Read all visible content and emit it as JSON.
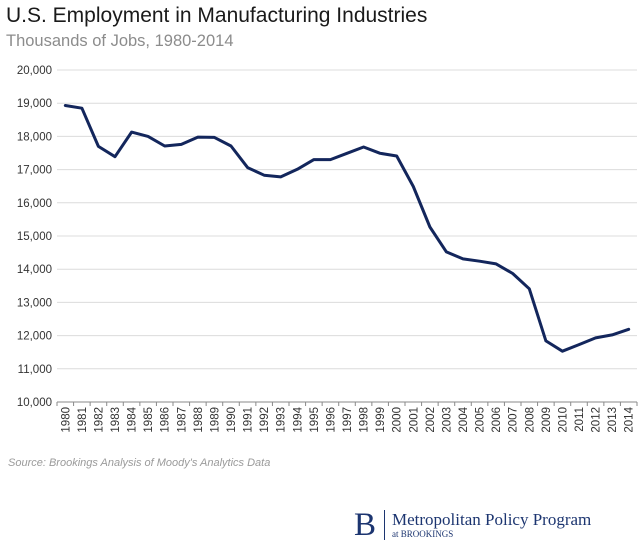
{
  "header": {
    "title": "U.S. Employment in Manufacturing Industries",
    "subtitle": "Thousands of Jobs, 1980-2014"
  },
  "footer": {
    "source": "Source: Brookings Analysis of Moody's Analytics Data"
  },
  "brand": {
    "logo_letter": "B",
    "name": "Metropolitan Policy Program",
    "sub": "at BROOKINGS",
    "color": "#1c3570"
  },
  "chart_data": {
    "type": "line",
    "title": "U.S. Employment in Manufacturing Industries",
    "subtitle": "Thousands of Jobs, 1980-2014",
    "xlabel": "",
    "ylabel": "",
    "ylim": [
      10000,
      20000
    ],
    "yticks": [
      "10,000",
      "11,000",
      "12,000",
      "13,000",
      "14,000",
      "15,000",
      "16,000",
      "17,000",
      "18,000",
      "19,000",
      "20,000"
    ],
    "grid": true,
    "line_color": "#13265c",
    "x": [
      "1980",
      "1981",
      "1982",
      "1983",
      "1984",
      "1985",
      "1986",
      "1987",
      "1988",
      "1989",
      "1990",
      "1991",
      "1992",
      "1993",
      "1994",
      "1995",
      "1996",
      "1997",
      "1998",
      "1999",
      "2000",
      "2001",
      "2002",
      "2003",
      "2004",
      "2005",
      "2006",
      "2007",
      "2008",
      "2009",
      "2010",
      "2011",
      "2012",
      "2013",
      "2014"
    ],
    "values": [
      18930,
      18850,
      17700,
      17390,
      18130,
      18000,
      17710,
      17760,
      17980,
      17970,
      17710,
      17060,
      16830,
      16780,
      17010,
      17300,
      17300,
      17490,
      17680,
      17490,
      17410,
      16490,
      15270,
      14520,
      14310,
      14240,
      14160,
      13870,
      13410,
      11840,
      11530,
      11730,
      11930,
      12020,
      12190
    ]
  }
}
